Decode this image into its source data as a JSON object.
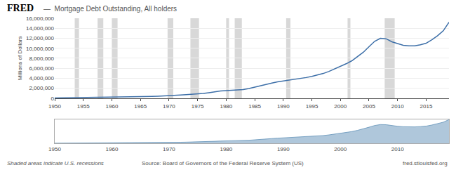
{
  "chart_data": [
    {
      "type": "line",
      "title": "FRED",
      "subtitle": "—  Mortgage Debt Outstanding, All holders",
      "y_label": "Millions of Dollars",
      "x": [
        1950,
        1951,
        1952,
        1953,
        1954,
        1955,
        1956,
        1957,
        1958,
        1959,
        1960,
        1961,
        1962,
        1963,
        1964,
        1965,
        1966,
        1967,
        1968,
        1969,
        1970,
        1971,
        1972,
        1973,
        1974,
        1975,
        1976,
        1977,
        1978,
        1979,
        1980,
        1981,
        1982,
        1983,
        1984,
        1985,
        1986,
        1987,
        1988,
        1989,
        1990,
        1991,
        1992,
        1993,
        1994,
        1995,
        1996,
        1997,
        1998,
        1999,
        2000,
        2001,
        2002,
        2003,
        2004,
        2005,
        2006,
        2007,
        2008,
        2009,
        2010,
        2011,
        2012,
        2013,
        2014,
        2015,
        2016,
        2017,
        2018,
        2019
      ],
      "values": [
        72000,
        85000,
        98000,
        110000,
        120000,
        138000,
        155000,
        168000,
        183000,
        205000,
        220000,
        235000,
        256000,
        278000,
        303000,
        334000,
        358000,
        383000,
        425000,
        465000,
        503000,
        570000,
        660000,
        740000,
        800000,
        860000,
        970000,
        1120000,
        1300000,
        1460000,
        1520000,
        1570000,
        1610000,
        1730000,
        1960000,
        2230000,
        2580000,
        2780000,
        3030000,
        3280000,
        3460000,
        3580000,
        3730000,
        3930000,
        4150000,
        4390000,
        4670000,
        4960000,
        5380000,
        5890000,
        6350000,
        6900000,
        7500000,
        8300000,
        9200000,
        10300000,
        11400000,
        12000000,
        11900000,
        11300000,
        10900000,
        10600000,
        10500000,
        10500000,
        10700000,
        11000000,
        11700000,
        12500000,
        13500000,
        15200000
      ],
      "color": "#3d6fa8",
      "xlim": [
        1950,
        2019
      ],
      "ylim": [
        0,
        16000000
      ],
      "xticks": [
        1950,
        1955,
        1960,
        1965,
        1970,
        1975,
        1980,
        1985,
        1990,
        1995,
        2000,
        2005,
        2010,
        2015
      ],
      "yticks": [
        0,
        {
          "value": 2000000,
          "label": "2,000,000"
        },
        {
          "value": 4000000,
          "label": "4,000,000"
        },
        {
          "value": 6000000,
          "label": "6,000,000"
        },
        {
          "value": 8000000,
          "label": "8,000,000"
        },
        {
          "value": 10000000,
          "label": "10,000,000"
        },
        {
          "value": 12000000,
          "label": "12,000,000"
        },
        {
          "value": 14000000,
          "label": "14,000,000"
        },
        {
          "value": 16000000,
          "label": "16,000,000"
        }
      ],
      "grid": true,
      "shaded_ranges": {
        "color": "#d8d8d8",
        "ranges": [
          [
            1953.5,
            1954.25
          ],
          [
            1957.5,
            1958.5
          ],
          [
            1960.0,
            1961.0
          ],
          [
            1969.75,
            1970.75
          ],
          [
            1973.75,
            1975.25
          ],
          [
            1980.0,
            1980.5
          ],
          [
            1981.5,
            1982.75
          ],
          [
            1990.5,
            1991.25
          ],
          [
            2001.25,
            2001.75
          ],
          [
            2007.75,
            2009.5
          ]
        ]
      },
      "annotations": [
        "Shaded areas indicate U.S. recessions",
        "Source: Board of Governors of the Federal Reserve System (US)",
        "fred.stlouisfed.org"
      ]
    },
    {
      "type": "area",
      "x": [
        1950,
        1951,
        1952,
        1953,
        1954,
        1955,
        1956,
        1957,
        1958,
        1959,
        1960,
        1961,
        1962,
        1963,
        1964,
        1965,
        1966,
        1967,
        1968,
        1969,
        1970,
        1971,
        1972,
        1973,
        1974,
        1975,
        1976,
        1977,
        1978,
        1979,
        1980,
        1981,
        1982,
        1983,
        1984,
        1985,
        1986,
        1987,
        1988,
        1989,
        1990,
        1991,
        1992,
        1993,
        1994,
        1995,
        1996,
        1997,
        1998,
        1999,
        2000,
        2001,
        2002,
        2003,
        2004,
        2005,
        2006,
        2007,
        2008,
        2009,
        2010,
        2011,
        2012,
        2013,
        2014,
        2015,
        2016,
        2017,
        2018,
        2019
      ],
      "values": [
        72000,
        85000,
        98000,
        110000,
        120000,
        138000,
        155000,
        168000,
        183000,
        205000,
        220000,
        235000,
        256000,
        278000,
        303000,
        334000,
        358000,
        383000,
        425000,
        465000,
        503000,
        570000,
        660000,
        740000,
        800000,
        860000,
        970000,
        1120000,
        1300000,
        1460000,
        1520000,
        1570000,
        1610000,
        1730000,
        1960000,
        2230000,
        2580000,
        2780000,
        3030000,
        3280000,
        3460000,
        3580000,
        3730000,
        3930000,
        4150000,
        4390000,
        4670000,
        4960000,
        5380000,
        5890000,
        6350000,
        6900000,
        7500000,
        8300000,
        9200000,
        10300000,
        11400000,
        12000000,
        11900000,
        11300000,
        10900000,
        10600000,
        10500000,
        10500000,
        10700000,
        11000000,
        11700000,
        12500000,
        13500000,
        15200000
      ],
      "color": "#6090b8",
      "xlim": [
        1950,
        2019
      ],
      "ylim": [
        0,
        15200000
      ],
      "xticks": [
        1950,
        1960,
        1970,
        1980,
        1990,
        2000,
        2010
      ],
      "tick_labels": "x",
      "grid": false
    }
  ]
}
